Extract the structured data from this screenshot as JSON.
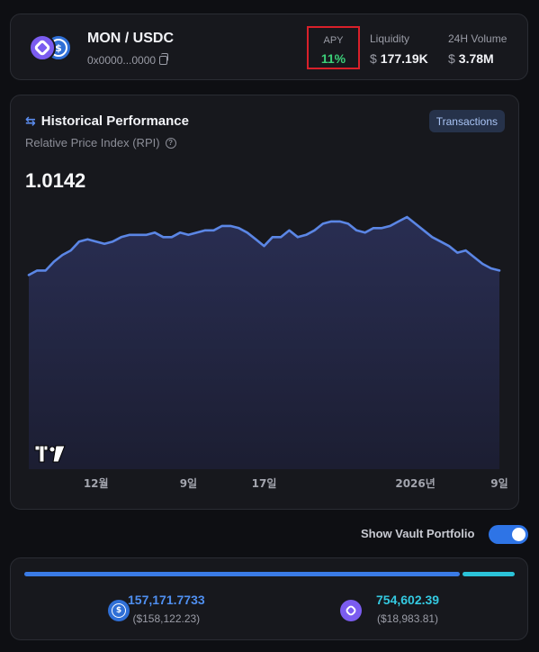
{
  "pair": {
    "title": "MON / USDC",
    "address": "0x0000...0000",
    "icons": [
      "mon-token-icon",
      "usdc-token-icon"
    ]
  },
  "stats": {
    "apy": {
      "label": "APY",
      "value": "11%"
    },
    "liquidity": {
      "label": "Liquidity",
      "currency": "$",
      "value": "177.19K"
    },
    "volume": {
      "label": "24H Volume",
      "currency": "$",
      "value": "3.78M"
    }
  },
  "chart": {
    "title": "Historical Performance",
    "subtitle": "Relative Price Index (RPI)",
    "current_value": "1.0142",
    "transactions_label": "Transactions",
    "watermark": "TV"
  },
  "chart_data": {
    "type": "area",
    "title": "Historical Performance",
    "subtitle": "Relative Price Index (RPI)",
    "ylim": [
      0.925,
      1.04
    ],
    "tick_labels": [
      {
        "label": "12월",
        "index": 8
      },
      {
        "label": "9일",
        "index": 19
      },
      {
        "label": "17일",
        "index": 28
      },
      {
        "label": "2026년",
        "index": 46
      },
      {
        "label": "9일",
        "index": 56
      }
    ],
    "values": [
      1.012,
      1.014,
      1.014,
      1.018,
      1.021,
      1.023,
      1.027,
      1.028,
      1.027,
      1.026,
      1.027,
      1.029,
      1.03,
      1.03,
      1.03,
      1.031,
      1.029,
      1.029,
      1.031,
      1.03,
      1.031,
      1.032,
      1.032,
      1.034,
      1.034,
      1.033,
      1.031,
      1.028,
      1.025,
      1.029,
      1.029,
      1.032,
      1.029,
      1.03,
      1.032,
      1.035,
      1.036,
      1.036,
      1.035,
      1.032,
      1.031,
      1.033,
      1.033,
      1.034,
      1.036,
      1.038,
      1.035,
      1.032,
      1.029,
      1.027,
      1.025,
      1.022,
      1.023,
      1.02,
      1.017,
      1.015,
      1.014
    ],
    "grid": false,
    "legend": "none",
    "line_color": "#5b86e5"
  },
  "toggle": {
    "label": "Show Vault Portfolio",
    "on": true
  },
  "portfolio": {
    "usdc": {
      "amount": "157,171.7733",
      "usd": "($158,122.23)",
      "share": 0.893,
      "color": "#3a7be6"
    },
    "mon": {
      "amount": "754,602.39",
      "usd": "($18,983.81)",
      "share": 0.107,
      "color": "#2bc3d8"
    }
  }
}
